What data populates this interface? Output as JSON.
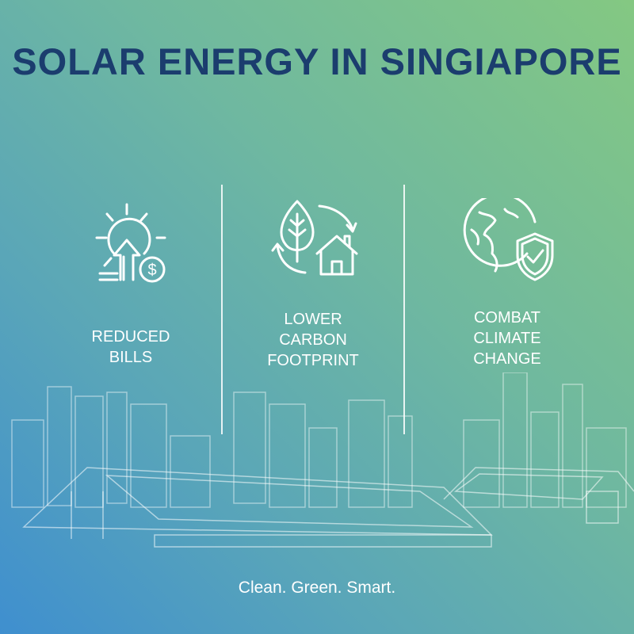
{
  "title": "SOLAR ENERGY IN SINGIAPORE",
  "benefits": [
    {
      "icon": "sun-dollar-arrow-icon",
      "label_lines": [
        "REDUCED",
        "BILLS"
      ]
    },
    {
      "icon": "leaf-house-recycle-icon",
      "label_lines": [
        "LOWER",
        "CARBON",
        "FOOTPRINT"
      ]
    },
    {
      "icon": "globe-shield-check-icon",
      "label_lines": [
        "COMBAT",
        "CLIMATE",
        "CHANGE"
      ]
    }
  ],
  "tagline": "Clean. Green. Smart.",
  "colors": {
    "title": "#1b3d6e",
    "gradient_start": "#3f8fcf",
    "gradient_end": "#84c882",
    "line": "#ffffff"
  }
}
